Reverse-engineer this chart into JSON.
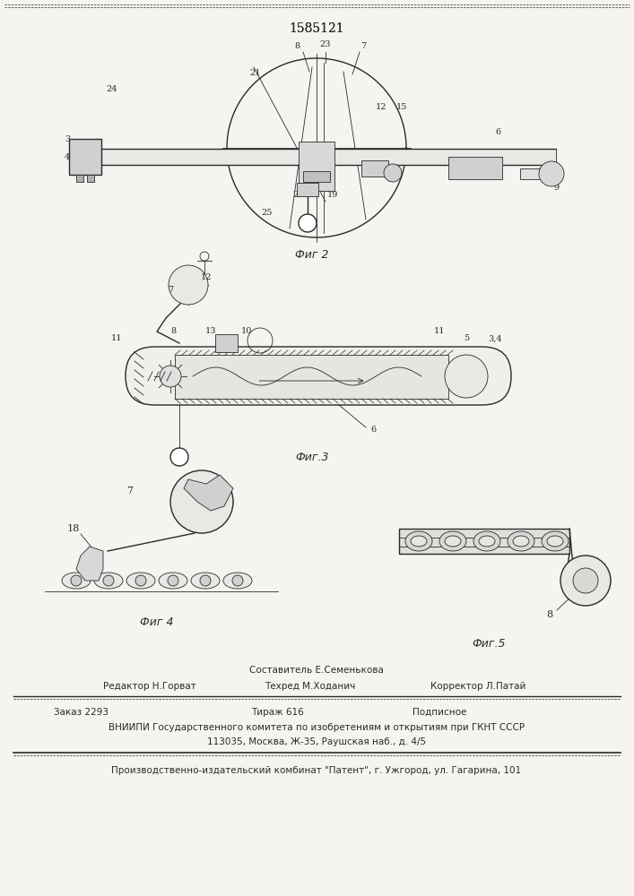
{
  "patent_number": "1585121",
  "bg_color": "#f5f4f0",
  "line_color": "#2a2a2a",
  "fig_width": 7.07,
  "fig_height": 10.0,
  "dpi": 100,
  "bottom_block": {
    "sostavitel_line": "Составитель Е.Семенькова",
    "editor_line_left": "Редактор Н.Горват",
    "editor_line_mid": "Техред М.Ходанич",
    "editor_line_right": "Корректор Л.Патай",
    "zakaz_line_left": "Заказ 2293",
    "zakaz_line_mid": "Тираж 616",
    "zakaz_line_right": "Подписное",
    "vniip_line1": "ВНИИПИ Государственного комитета по изобретениям и открытиям при ГКНТ СССР",
    "vniip_line2": "113035, Москва, Ж-35, Раушская наб., д. 4/5",
    "kombnat_line": "Производственно-издательский комбинат \"Патент\", г. Ужгород, ул. Гагарина, 101"
  }
}
